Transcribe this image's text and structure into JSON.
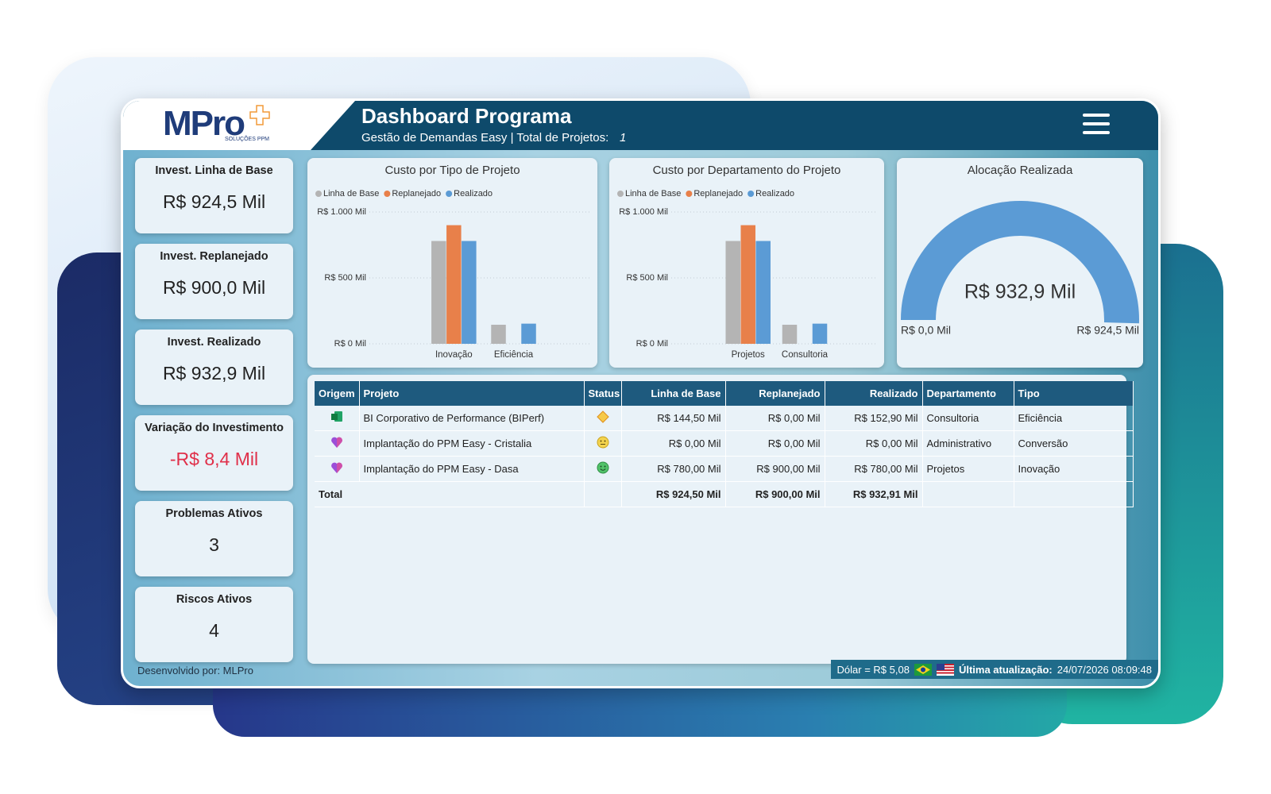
{
  "header": {
    "logo": "MPro",
    "logo_sub": "SOLUÇÕES PPM",
    "title": "Dashboard Programa",
    "subtitle": "Gestão de Demandas Easy  | Total de Projetos:",
    "project_count": "1"
  },
  "kpis": [
    {
      "label": "Invest. Linha de Base",
      "value": "R$ 924,5 Mil"
    },
    {
      "label": "Invest. Replanejado",
      "value": "R$ 900,0 Mil"
    },
    {
      "label": "Invest. Realizado",
      "value": "R$ 932,9 Mil"
    },
    {
      "label": "Variação do Investimento",
      "value": "-R$ 8,4 Mil"
    },
    {
      "label": "Problemas Ativos",
      "value": "3"
    },
    {
      "label": "Riscos Ativos",
      "value": "4"
    }
  ],
  "chart_data": [
    {
      "type": "bar",
      "title": "Custo por Tipo de Projeto",
      "categories": [
        "Inovação",
        "Eficiência"
      ],
      "series": [
        {
          "name": "Linha de Base",
          "color": "#b4b4b4",
          "values": [
            780,
            144.5
          ]
        },
        {
          "name": "Replanejado",
          "color": "#e8804a",
          "values": [
            900,
            0
          ]
        },
        {
          "name": "Realizado",
          "color": "#5b9bd5",
          "values": [
            780,
            152.9
          ]
        }
      ],
      "ylim": [
        0,
        1000
      ],
      "yticks": [
        {
          "value": 0,
          "label": "R$ 0 Mil"
        },
        {
          "value": 500,
          "label": "R$ 500 Mil"
        },
        {
          "value": 1000,
          "label": "R$ 1.000 Mil"
        }
      ],
      "grid": true
    },
    {
      "type": "bar",
      "title": "Custo por Departamento do Projeto",
      "categories": [
        "Projetos",
        "Consultoria"
      ],
      "series": [
        {
          "name": "Linha de Base",
          "color": "#b4b4b4",
          "values": [
            780,
            144.5
          ]
        },
        {
          "name": "Replanejado",
          "color": "#e8804a",
          "values": [
            900,
            0
          ]
        },
        {
          "name": "Realizado",
          "color": "#5b9bd5",
          "values": [
            780,
            152.9
          ]
        }
      ],
      "ylim": [
        0,
        1000
      ],
      "yticks": [
        {
          "value": 0,
          "label": "R$ 0 Mil"
        },
        {
          "value": 500,
          "label": "R$ 500 Mil"
        },
        {
          "value": 1000,
          "label": "R$ 1.000 Mil"
        }
      ],
      "grid": true
    },
    {
      "type": "gauge",
      "title": "Alocação Realizada",
      "value": 932.9,
      "value_label": "R$ 932,9 Mil",
      "min": {
        "value": 0,
        "label": "R$ 0,0 Mil"
      },
      "max": {
        "value": 924.5,
        "label": "R$ 924,5 Mil"
      },
      "color": "#5b9bd5"
    }
  ],
  "table": {
    "columns": [
      "Origem",
      "Projeto",
      "Status",
      "Linha de Base",
      "Replanejado",
      "Realizado",
      "Departamento",
      "Tipo"
    ],
    "rows": [
      {
        "projeto": "BI Corporativo de Performance (BIPerf)",
        "linha_de_base": "R$ 144,50 Mil",
        "replanejado": "R$ 0,00 Mil",
        "realizado": "R$ 152,90 Mil",
        "departamento": "Consultoria",
        "tipo": "Eficiência"
      },
      {
        "projeto": "Implantação do PPM Easy - Cristalia",
        "linha_de_base": "R$ 0,00 Mil",
        "replanejado": "R$ 0,00 Mil",
        "realizado": "R$ 0,00 Mil",
        "departamento": "Administrativo",
        "tipo": "Conversão"
      },
      {
        "projeto": "Implantação do PPM Easy - Dasa",
        "linha_de_base": "R$ 780,00 Mil",
        "replanejado": "R$ 900,00 Mil",
        "realizado": "R$ 780,00 Mil",
        "departamento": "Projetos",
        "tipo": "Inovação"
      }
    ],
    "total": {
      "label": "Total",
      "linha_de_base": "R$ 924,50 Mil",
      "replanejado": "R$ 900,00 Mil",
      "realizado": "R$ 932,91 Mil"
    }
  },
  "footer": {
    "developer": "Desenvolvido por: MLPro",
    "dollar": "Dólar = R$ 5,08",
    "update_label": "Última atualização:",
    "update_value": "24/07/2026 08:09:48"
  }
}
